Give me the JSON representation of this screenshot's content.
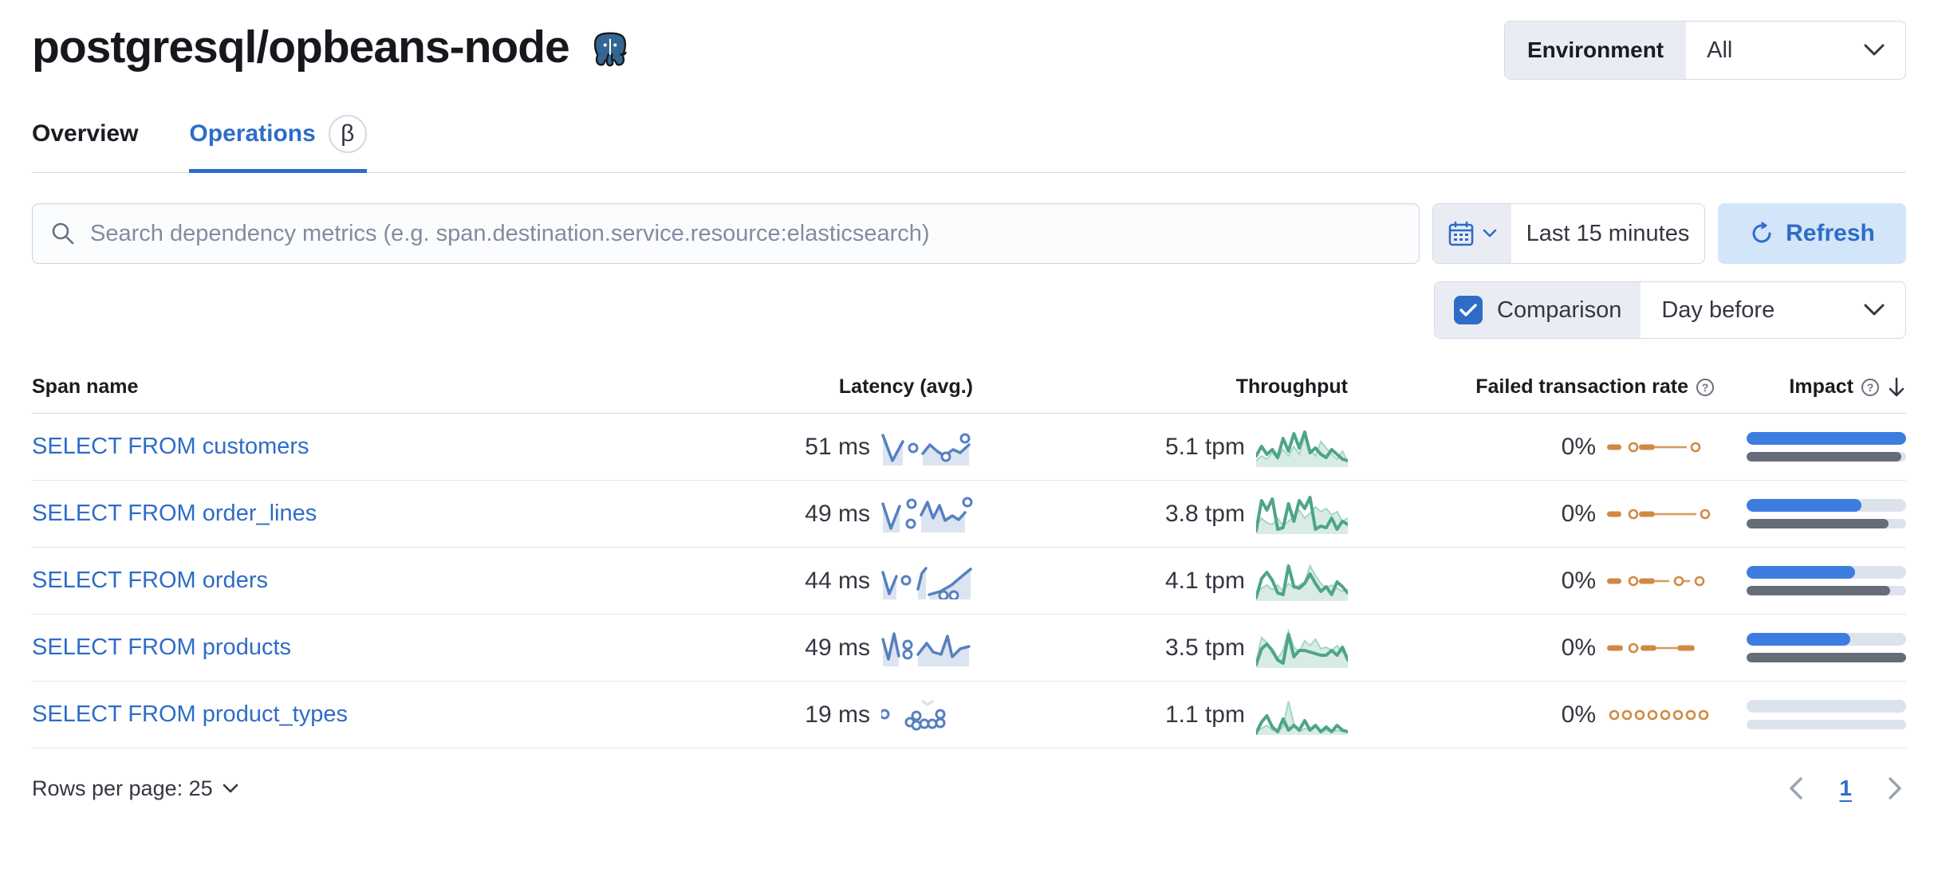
{
  "page_title": "postgresql/opbeans-node",
  "environment": {
    "label": "Environment",
    "value": "All"
  },
  "tabs": [
    {
      "label": "Overview",
      "active": false
    },
    {
      "label": "Operations",
      "active": true,
      "beta": "β"
    }
  ],
  "search": {
    "placeholder": "Search dependency metrics (e.g. span.destination.service.resource:elasticsearch)"
  },
  "time_picker": {
    "value": "Last 15 minutes"
  },
  "refresh_label": "Refresh",
  "comparison": {
    "label": "Comparison",
    "checked": true,
    "value": "Day before"
  },
  "table": {
    "columns": [
      "Span name",
      "Latency (avg.)",
      "Throughput",
      "Failed transaction rate",
      "Impact"
    ],
    "rows": [
      {
        "span_name": "SELECT FROM customers",
        "latency": "51 ms",
        "throughput": "5.1 tpm",
        "failed_rate": "0%",
        "impact_current": 100,
        "impact_previous": 97,
        "latency_spark": {
          "segments": [
            {
              "pts": [
                [
                  2,
                  8
                ],
                [
                  14,
                  40
                ],
                [
                  27,
                  16
                ]
              ],
              "area": true
            },
            {
              "pts": [
                [
                  52,
                  31
                ],
                [
                  61,
                  20
                ],
                [
                  70,
                  28
                ],
                [
                  79,
                  34
                ],
                [
                  90,
                  26
                ],
                [
                  99,
                  30
                ],
                [
                  110,
                  20
                ]
              ],
              "area": true
            }
          ],
          "markers": [
            [
              40,
              24
            ],
            [
              81,
              35
            ],
            [
              105,
              12
            ]
          ]
        },
        "throughput_spark": {
          "comparison": [
            42,
            36,
            40,
            32,
            40,
            28,
            36,
            24,
            34,
            10,
            28,
            36,
            18,
            26,
            34,
            40,
            30,
            44
          ],
          "current": [
            36,
            24,
            34,
            28,
            38,
            14,
            30,
            8,
            26,
            6,
            32,
            26,
            34,
            38,
            28,
            34,
            40,
            42
          ]
        },
        "failed_spark": {
          "dashes": [
            [
              0,
              18
            ],
            [
              40,
              60
            ]
          ],
          "lines": [
            [
              60,
              100
            ]
          ],
          "circles": [
            28,
            106
          ]
        }
      },
      {
        "span_name": "SELECT FROM order_lines",
        "latency": "49 ms",
        "throughput": "3.8 tpm",
        "failed_rate": "0%",
        "impact_current": 72,
        "impact_previous": 89,
        "latency_spark": {
          "segments": [
            {
              "pts": [
                [
                  2,
                  10
                ],
                [
                  12,
                  41
                ],
                [
                  23,
                  13
                ]
              ],
              "area": true
            },
            {
              "pts": [
                [
                  50,
                  24
                ],
                [
                  58,
                  8
                ],
                [
                  65,
                  28
                ],
                [
                  73,
                  12
                ],
                [
                  80,
                  31
                ],
                [
                  89,
                  25
                ],
                [
                  97,
                  30
                ],
                [
                  105,
                  21
                ]
              ],
              "area": true
            }
          ],
          "markers": [
            [
              38,
              10
            ],
            [
              37,
              35
            ],
            [
              108,
              8
            ]
          ]
        },
        "throughput_spark": {
          "comparison": [
            40,
            30,
            36,
            38,
            30,
            40,
            34,
            28,
            20,
            30,
            24,
            16,
            22,
            18,
            26,
            22,
            34,
            30
          ],
          "current": [
            46,
            8,
            20,
            6,
            44,
            42,
            12,
            34,
            8,
            18,
            4,
            44,
            40,
            42,
            30,
            44,
            34,
            38
          ]
        },
        "failed_spark": {
          "dashes": [
            [
              0,
              18
            ],
            [
              40,
              60
            ]
          ],
          "lines": [
            [
              60,
              112
            ]
          ],
          "circles": [
            28,
            118
          ]
        }
      },
      {
        "span_name": "SELECT FROM orders",
        "latency": "44 ms",
        "throughput": "4.1 tpm",
        "failed_rate": "0%",
        "impact_current": 68,
        "impact_previous": 90,
        "latency_spark": {
          "segments": [
            {
              "pts": [
                [
                  2,
                  12
                ],
                [
                  10,
                  39
                ],
                [
                  19,
                  17
                ]
              ],
              "area": true
            },
            {
              "pts": [
                [
                  46,
                  33
                ],
                [
                  51,
                  13
                ],
                [
                  56,
                  7
                ]
              ],
              "area": true
            },
            {
              "pts": [
                [
                  60,
                  40
                ],
                [
                  74,
                  36
                ],
                [
                  88,
                  28
                ],
                [
                  101,
                  17
                ],
                [
                  112,
                  8
                ]
              ],
              "area": true
            }
          ],
          "markers": [
            [
              31,
              22
            ],
            [
              78,
              41
            ],
            [
              91,
              41
            ]
          ]
        },
        "throughput_spark": {
          "comparison": [
            42,
            34,
            30,
            36,
            30,
            38,
            28,
            34,
            30,
            26,
            6,
            18,
            28,
            34,
            30,
            34,
            38,
            36
          ],
          "current": [
            46,
            22,
            14,
            24,
            40,
            42,
            6,
            32,
            34,
            28,
            16,
            28,
            38,
            32,
            42,
            26,
            32,
            40
          ]
        },
        "failed_spark": {
          "dashes": [
            [
              0,
              18
            ],
            [
              40,
              60
            ]
          ],
          "lines": [
            [
              60,
              78
            ],
            [
              92,
              104
            ]
          ],
          "circles": [
            28,
            85,
            111
          ]
        }
      },
      {
        "span_name": "SELECT FROM products",
        "latency": "49 ms",
        "throughput": "3.5 tpm",
        "failed_rate": "0%",
        "impact_current": 65,
        "impact_previous": 100,
        "latency_spark": {
          "segments": [
            {
              "pts": [
                [
                  2,
                  12
                ],
                [
                  9,
                  37
                ],
                [
                  16,
                  5
                ],
                [
                  22,
                  33
                ]
              ],
              "area": true
            },
            {
              "pts": [
                [
                  46,
                  31
                ],
                [
                  57,
                  17
                ],
                [
                  65,
                  28
                ],
                [
                  75,
                  31
                ],
                [
                  83,
                  8
                ],
                [
                  89,
                  34
                ],
                [
                  99,
                  24
                ],
                [
                  110,
                  21
                ]
              ],
              "area": true
            }
          ],
          "markers": [
            [
              33,
              19
            ],
            [
              33,
              31
            ]
          ]
        },
        "throughput_spark": {
          "comparison": [
            42,
            12,
            18,
            32,
            38,
            28,
            4,
            24,
            30,
            16,
            22,
            14,
            26,
            24,
            28,
            22,
            30,
            36
          ],
          "current": [
            46,
            26,
            20,
            28,
            40,
            44,
            8,
            36,
            28,
            28,
            30,
            32,
            34,
            34,
            28,
            34,
            24,
            40
          ]
        },
        "failed_spark": {
          "dashes": [
            [
              0,
              20
            ],
            [
              42,
              62
            ],
            [
              88,
              110
            ]
          ],
          "lines": [
            [
              62,
              88
            ]
          ],
          "circles": [
            28
          ]
        }
      },
      {
        "span_name": "SELECT FROM product_types",
        "latency": "19 ms",
        "throughput": "1.1 tpm",
        "failed_rate": "0%",
        "impact_current": 0,
        "impact_previous": 0,
        "latency_spark": {
          "segments": [
            {
              "pts": [
                [
                  52,
                  6
                ],
                [
                  58,
                  10
                ],
                [
                  64,
                  6
                ]
              ],
              "area": false
            }
          ],
          "markers": [
            [
              4,
              22
            ],
            [
              36,
              32
            ],
            [
              44,
              24
            ],
            [
              44,
              36
            ],
            [
              54,
              34
            ],
            [
              64,
              34
            ],
            [
              74,
              22
            ],
            [
              74,
              33
            ]
          ]
        },
        "throughput_spark": {
          "comparison": [
            46,
            42,
            38,
            44,
            46,
            40,
            8,
            36,
            46,
            42,
            44,
            40,
            46,
            44,
            46,
            44,
            46,
            46
          ],
          "current": [
            48,
            34,
            26,
            40,
            46,
            30,
            44,
            38,
            44,
            32,
            44,
            38,
            46,
            40,
            46,
            38,
            44,
            46
          ]
        },
        "failed_spark": {
          "dashes": [],
          "lines": [],
          "circles": [
            4,
            20,
            36,
            52,
            68,
            84,
            100,
            116
          ]
        }
      }
    ]
  },
  "pagination": {
    "rows_per_page": "Rows per page: 25",
    "current_page": "1"
  },
  "colors": {
    "primary": "#2e6cc8",
    "latency_line": "#5680c0",
    "latency_area": "#dce4f1",
    "throughput_line": "#4da589",
    "throughput_comp_line": "#a5d6c3",
    "throughput_area": "#d9ece3",
    "failed": "#d08943",
    "impact_bar": "#3d7de0",
    "impact_previous": "#666d78",
    "impact_track": "#dde3ed"
  }
}
